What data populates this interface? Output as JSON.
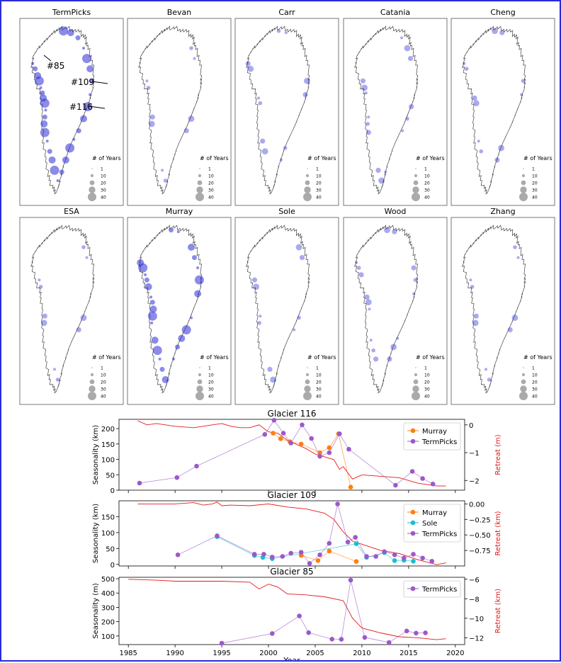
{
  "maps": {
    "panels": [
      {
        "name": "TermPicks",
        "intensity": 5
      },
      {
        "name": "Bevan",
        "intensity": 1
      },
      {
        "name": "Carr",
        "intensity": 1
      },
      {
        "name": "Catania",
        "intensity": 2
      },
      {
        "name": "Cheng",
        "intensity": 1
      },
      {
        "name": "ESA",
        "intensity": 1
      },
      {
        "name": "Murray",
        "intensity": 4
      },
      {
        "name": "Sole",
        "intensity": 1
      },
      {
        "name": "Wood",
        "intensity": 2
      },
      {
        "name": "Zhang",
        "intensity": 1
      }
    ],
    "legend_title": "# of Years",
    "legend_values": [
      "1",
      "10",
      "20",
      "30",
      "40"
    ],
    "annotations": [
      "#85",
      "#109",
      "#116"
    ],
    "marker_color": "#2b2bd6"
  },
  "chart_data": [
    {
      "type": "line",
      "title": "Glacier 116",
      "xlabel": "",
      "ylabel": "Seasonality (km)",
      "y2label": "Retreat (m)",
      "xlim": [
        1984,
        2021
      ],
      "ylim": [
        0,
        230
      ],
      "y2lim": [
        -2.35,
        0.2
      ],
      "yticks": [
        "0",
        "50",
        "100",
        "150",
        "200"
      ],
      "y2ticks": [
        "0",
        "−1",
        "−2"
      ],
      "legend": "top-right",
      "series": [
        {
          "name": "Murray",
          "color": "#ff7f0e",
          "x": [
            2000.5,
            2001.3,
            2002.3,
            2003.5,
            2005.5,
            2006.5,
            2007.5,
            2008.8
          ],
          "y": [
            185,
            167,
            157,
            150,
            122,
            138,
            183,
            10
          ]
        },
        {
          "name": "TermPicks",
          "color": "#9b59c9",
          "x": [
            1986.2,
            1990.2,
            1992.3,
            1999.6,
            2000.6,
            2001.6,
            2002.4,
            2003.6,
            2004.6,
            2005.5,
            2006.5,
            2007.6,
            2008.6,
            2013.6,
            2015.4,
            2016.5,
            2017.6
          ],
          "y": [
            23,
            41,
            78,
            181,
            227,
            185,
            153,
            212,
            168,
            110,
            122,
            183,
            133,
            16,
            61,
            38,
            20
          ]
        }
      ],
      "retreat": {
        "x": [
          1986,
          1987,
          1988,
          1990,
          1992,
          1994,
          1995,
          1996,
          1997,
          1998,
          1999,
          2000,
          2001,
          2002,
          2003,
          2004,
          2005,
          2006,
          2007,
          2007.6,
          2008,
          2009,
          2010,
          2012,
          2014,
          2016,
          2018,
          2019
        ],
        "y": [
          0.15,
          0.0,
          0.05,
          -0.05,
          -0.1,
          0.0,
          0.05,
          -0.05,
          -0.1,
          -0.1,
          0.0,
          -0.25,
          -0.3,
          -0.55,
          -0.7,
          -0.85,
          -1.05,
          -1.15,
          -1.25,
          -1.6,
          -1.5,
          -1.95,
          -1.8,
          -1.85,
          -1.9,
          -2.1,
          -2.2,
          -2.2
        ]
      }
    },
    {
      "type": "line",
      "title": "Glacier 109",
      "xlabel": "",
      "ylabel": "Seasonality (km)",
      "y2label": "Retreat (km)",
      "xlim": [
        1984,
        2021
      ],
      "ylim": [
        -5,
        200
      ],
      "y2lim": [
        -1.0,
        0.05
      ],
      "yticks": [
        "0",
        "50",
        "100",
        "150"
      ],
      "y2ticks": [
        "0.00",
        "−0.25",
        "−0.50",
        "−0.75"
      ],
      "legend": "top-right",
      "series": [
        {
          "name": "Murray",
          "color": "#ff7f0e",
          "x": [
            2003.5,
            2005.3,
            2006.5,
            2009.4
          ],
          "y": [
            28,
            12,
            42,
            9
          ]
        },
        {
          "name": "Sole",
          "color": "#17becf",
          "x": [
            1994.5,
            1998.5,
            1999.4,
            2000.4,
            2009.4,
            2010.5,
            2012.4,
            2013.5,
            2014.5,
            2015.5
          ],
          "y": [
            87,
            28,
            22,
            18,
            65,
            22,
            37,
            12,
            13,
            10
          ]
        },
        {
          "name": "TermPicks",
          "color": "#9b59c9",
          "x": [
            1990.3,
            1994.5,
            1998.5,
            1999.5,
            2000.4,
            2001.5,
            2002.4,
            2003.5,
            2004.4,
            2005.5,
            2006.5,
            2007.4,
            2008.5,
            2009.3,
            2010.5,
            2011.5,
            2012.4,
            2013.5,
            2014.5,
            2015.5,
            2016.5,
            2017.5
          ],
          "y": [
            30,
            90,
            32,
            32,
            23,
            25,
            35,
            38,
            3,
            30,
            66,
            190,
            70,
            85,
            25,
            25,
            40,
            30,
            20,
            32,
            20,
            10
          ]
        }
      ],
      "retreat": {
        "x": [
          1986,
          1988,
          1990,
          1992,
          1993,
          1994,
          1994.5,
          1995,
          1996,
          1998,
          2000,
          2002,
          2004,
          2006,
          2007,
          2008,
          2009,
          2010,
          2012,
          2014,
          2016,
          2018,
          2019
        ],
        "y": [
          0.0,
          0.0,
          0.0,
          0.02,
          -0.02,
          0.0,
          0.03,
          -0.03,
          -0.02,
          -0.03,
          0.0,
          -0.05,
          -0.08,
          -0.15,
          -0.25,
          -0.45,
          -0.6,
          -0.65,
          -0.75,
          -0.8,
          -0.9,
          -0.98,
          -0.95
        ]
      }
    },
    {
      "type": "line",
      "title": "Glacier 85",
      "xlabel": "Year",
      "ylabel": "Seasonality (m)",
      "y2label": "Retreat (km)",
      "xlim": [
        1984,
        2021
      ],
      "ylim": [
        40,
        510
      ],
      "y2lim": [
        -12.7,
        -5.8
      ],
      "yticks": [
        "100",
        "200",
        "300",
        "400",
        "500"
      ],
      "y2ticks": [
        "−6",
        "−8",
        "−10",
        "−12"
      ],
      "xticks": [
        "1985",
        "1990",
        "1995",
        "2000",
        "2005",
        "2010",
        "2015",
        "2020"
      ],
      "legend": "top-right",
      "series": [
        {
          "name": "TermPicks",
          "color": "#9b59c9",
          "x": [
            1995.0,
            2000.4,
            2003.3,
            2004.3,
            2006.8,
            2007.8,
            2008.8,
            2010.3,
            2012.9,
            2014.8,
            2015.8,
            2016.8
          ],
          "y": [
            50,
            117,
            240,
            123,
            78,
            77,
            490,
            90,
            55,
            135,
            120,
            122
          ]
        }
      ],
      "retreat": {
        "x": [
          1985,
          1988,
          1990,
          1995,
          1998,
          1999,
          2000,
          2001,
          2002,
          2004,
          2006,
          2008,
          2009,
          2010,
          2012,
          2014,
          2016,
          2018,
          2019
        ],
        "y": [
          -6.0,
          -6.1,
          -6.2,
          -6.2,
          -6.3,
          -7.0,
          -6.5,
          -6.8,
          -7.5,
          -7.6,
          -7.8,
          -8.2,
          -10.0,
          -11.0,
          -11.5,
          -11.9,
          -12.0,
          -12.2,
          -12.1
        ]
      }
    }
  ]
}
